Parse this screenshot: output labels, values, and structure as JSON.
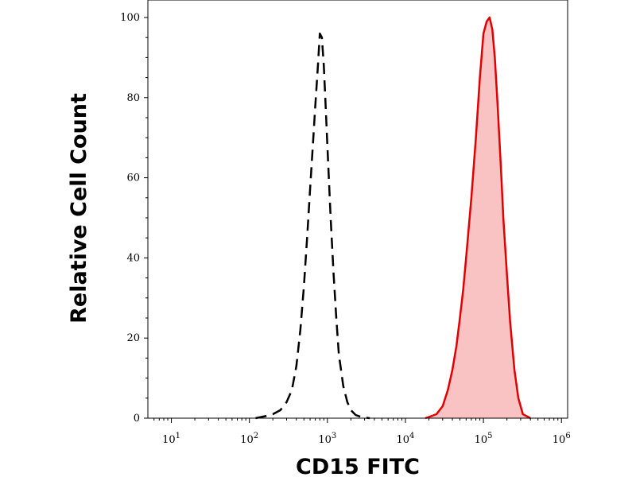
{
  "chart_data": {
    "type": "area",
    "title": "",
    "xlabel": "CD15 FITC",
    "ylabel": "Relative Cell Count",
    "x_scale": "log",
    "xlim": [
      5,
      1200000
    ],
    "ylim": [
      0,
      102
    ],
    "x_ticks": [
      {
        "base": "10",
        "exp": "1",
        "value": 10
      },
      {
        "base": "10",
        "exp": "2",
        "value": 100
      },
      {
        "base": "10",
        "exp": "3",
        "value": 1000
      },
      {
        "base": "10",
        "exp": "4",
        "value": 10000
      },
      {
        "base": "10",
        "exp": "5",
        "value": 100000
      },
      {
        "base": "10",
        "exp": "6",
        "value": 1000000
      }
    ],
    "y_ticks": [
      0,
      20,
      40,
      60,
      80,
      100
    ],
    "grid": false,
    "legend": "none",
    "series": [
      {
        "style": "dashed",
        "color": "#000000",
        "fill": "none",
        "x": [
          120,
          160,
          200,
          250,
          300,
          350,
          400,
          450,
          500,
          550,
          600,
          650,
          700,
          750,
          800,
          850,
          900,
          950,
          1000,
          1100,
          1200,
          1300,
          1400,
          1600,
          1800,
          2000,
          2300,
          2800,
          3500
        ],
        "y": [
          0,
          0.5,
          1,
          2,
          4,
          7,
          13,
          22,
          33,
          45,
          57,
          68,
          78,
          87,
          96,
          95,
          88,
          78,
          68,
          50,
          36,
          25,
          16,
          8,
          4,
          2,
          0.8,
          0.2,
          0
        ]
      },
      {
        "style": "solid",
        "color": "#e00000",
        "fill": "#f9c3c3",
        "x": [
          18000,
          20000,
          25000,
          30000,
          35000,
          40000,
          45000,
          50000,
          55000,
          60000,
          70000,
          80000,
          90000,
          100000,
          110000,
          120000,
          130000,
          140000,
          150000,
          160000,
          170000,
          180000,
          200000,
          220000,
          250000,
          280000,
          320000,
          400000
        ],
        "y": [
          0,
          0.3,
          1,
          3,
          7,
          12,
          18,
          25,
          32,
          40,
          55,
          70,
          85,
          96,
          99,
          100,
          97,
          90,
          80,
          70,
          60,
          50,
          36,
          24,
          12,
          5,
          1,
          0
        ]
      }
    ]
  }
}
